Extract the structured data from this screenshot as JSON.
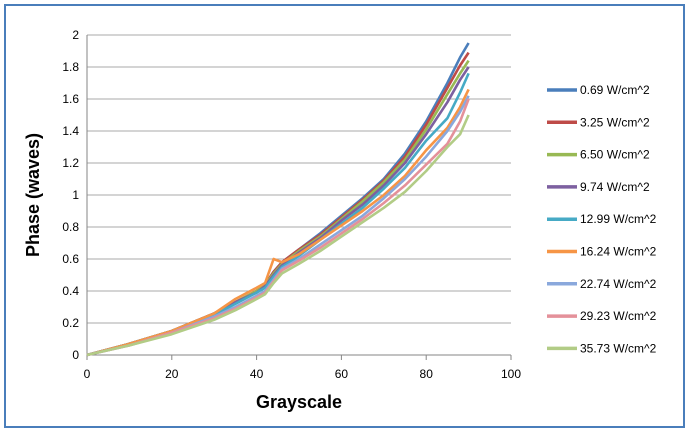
{
  "chart_data": {
    "type": "line",
    "title": "",
    "xlabel": "Grayscale",
    "ylabel": "Phase (waves)",
    "xlim": [
      0,
      100
    ],
    "ylim": [
      0,
      2
    ],
    "x_ticks": [
      "0",
      "20",
      "40",
      "60",
      "80",
      "100"
    ],
    "y_ticks": [
      "0",
      "0.2",
      "0.4",
      "0.6",
      "0.8",
      "1",
      "1.2",
      "1.4",
      "1.6",
      "1.8",
      "2"
    ],
    "grid": "horizontal",
    "legend_position": "right",
    "x": [
      0,
      10,
      20,
      30,
      35,
      40,
      42,
      44,
      46,
      50,
      55,
      60,
      65,
      70,
      75,
      80,
      85,
      88,
      90
    ],
    "series": [
      {
        "name": "0.69 W/cm^2",
        "color": "#4a7ebb",
        "values": [
          0,
          0.07,
          0.15,
          0.26,
          0.33,
          0.4,
          0.44,
          0.52,
          0.58,
          0.66,
          0.76,
          0.87,
          0.98,
          1.1,
          1.26,
          1.46,
          1.7,
          1.86,
          1.95
        ]
      },
      {
        "name": "3.25 W/cm^2",
        "color": "#be4b48",
        "values": [
          0,
          0.07,
          0.15,
          0.26,
          0.33,
          0.4,
          0.44,
          0.52,
          0.58,
          0.66,
          0.75,
          0.86,
          0.97,
          1.09,
          1.24,
          1.44,
          1.67,
          1.81,
          1.89
        ]
      },
      {
        "name": "6.50 W/cm^2",
        "color": "#98b954",
        "values": [
          0,
          0.07,
          0.15,
          0.26,
          0.33,
          0.4,
          0.44,
          0.51,
          0.57,
          0.65,
          0.74,
          0.85,
          0.96,
          1.08,
          1.22,
          1.41,
          1.63,
          1.76,
          1.84
        ]
      },
      {
        "name": "9.74 W/cm^2",
        "color": "#7d60a0",
        "values": [
          0,
          0.07,
          0.15,
          0.26,
          0.33,
          0.39,
          0.43,
          0.5,
          0.56,
          0.64,
          0.73,
          0.84,
          0.94,
          1.06,
          1.2,
          1.38,
          1.58,
          1.72,
          1.8
        ]
      },
      {
        "name": "12.99 W/cm^2",
        "color": "#46aac5",
        "values": [
          0,
          0.07,
          0.15,
          0.25,
          0.32,
          0.39,
          0.42,
          0.49,
          0.55,
          0.62,
          0.72,
          0.82,
          0.92,
          1.04,
          1.17,
          1.34,
          1.48,
          1.64,
          1.76
        ]
      },
      {
        "name": "16.24 W/cm^2",
        "color": "#f69546",
        "values": [
          0,
          0.07,
          0.15,
          0.26,
          0.35,
          0.42,
          0.45,
          0.6,
          0.58,
          0.63,
          0.72,
          0.81,
          0.9,
          1.0,
          1.12,
          1.28,
          1.42,
          1.55,
          1.66
        ]
      },
      {
        "name": "22.74 W/cm^2",
        "color": "#8aa8dc",
        "values": [
          0,
          0.06,
          0.14,
          0.24,
          0.3,
          0.37,
          0.4,
          0.47,
          0.54,
          0.6,
          0.69,
          0.78,
          0.87,
          0.98,
          1.1,
          1.24,
          1.4,
          1.52,
          1.62
        ]
      },
      {
        "name": "29.23 W/cm^2",
        "color": "#e4919a",
        "values": [
          0,
          0.06,
          0.14,
          0.23,
          0.29,
          0.36,
          0.39,
          0.46,
          0.53,
          0.59,
          0.67,
          0.76,
          0.85,
          0.95,
          1.06,
          1.19,
          1.32,
          1.46,
          1.6
        ]
      },
      {
        "name": "35.73 W/cm^2",
        "color": "#b2cc86",
        "values": [
          0,
          0.06,
          0.13,
          0.22,
          0.28,
          0.35,
          0.38,
          0.45,
          0.51,
          0.57,
          0.65,
          0.74,
          0.83,
          0.92,
          1.02,
          1.15,
          1.3,
          1.38,
          1.5
        ]
      }
    ]
  }
}
